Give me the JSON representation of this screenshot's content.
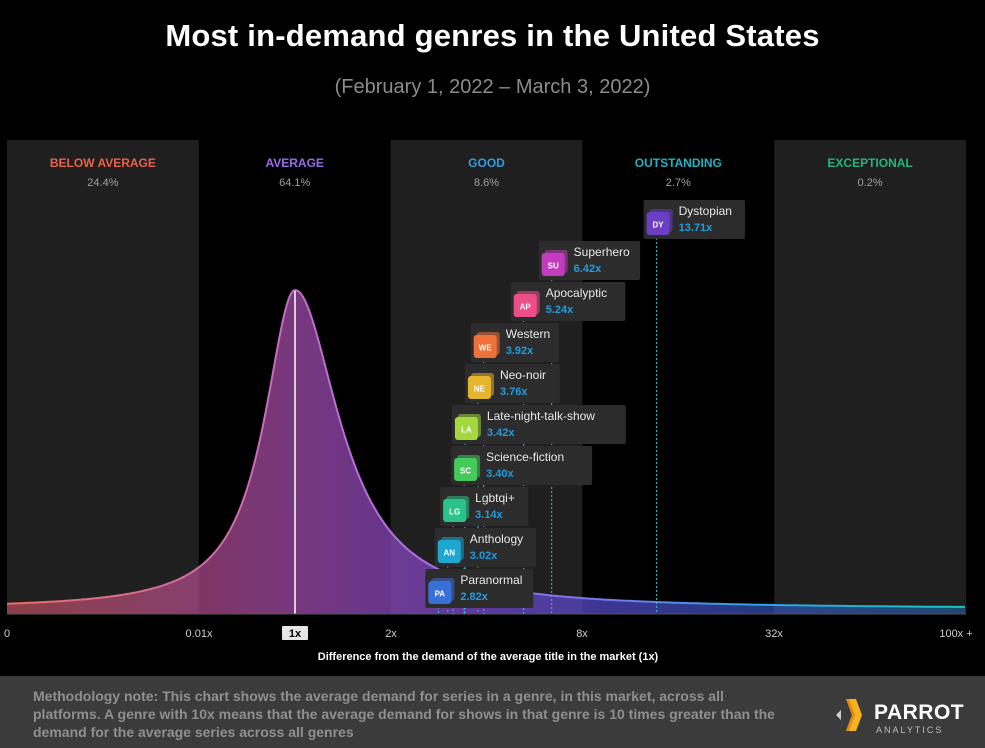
{
  "title": "Most in-demand genres in the United States",
  "subtitle": "(February 1, 2022 – March 3, 2022)",
  "footer": {
    "methodology": "Methodology note: This chart shows the average demand for series in a genre, in this market, across all platforms.  A genre with 10x means that the average demand for shows in that genre is 10 times greater than the demand for the average series across all genres",
    "brand": "PARROT",
    "brand_sub": "ANALYTICS"
  },
  "colors": {
    "background": "#000000",
    "band": "#1f1f1f",
    "value": "#1f9de0",
    "label_bg": "#2c2c2c"
  },
  "chart_data": {
    "type": "area",
    "title": "Most in-demand genres in the United States",
    "xlabel": "Difference from the demand of the average title in the market (1x)",
    "x_ticks": [
      "0",
      "0.01x",
      "1x",
      "2x",
      "8x",
      "32x",
      "100x +"
    ],
    "highlight_tick": "1x",
    "bands": [
      {
        "name": "BELOW AVERAGE",
        "share": "24.4%",
        "color": "#e8614c",
        "shaded": true
      },
      {
        "name": "AVERAGE",
        "share": "64.1%",
        "color": "#9b6be8",
        "shaded": false
      },
      {
        "name": "GOOD",
        "share": "8.6%",
        "color": "#2f9fe0",
        "shaded": true
      },
      {
        "name": "OUTSTANDING",
        "share": "2.7%",
        "color": "#21b3c4",
        "shaded": false
      },
      {
        "name": "EXCEPTIONAL",
        "share": "0.2%",
        "color": "#22b57c",
        "shaded": true
      }
    ],
    "genres": [
      {
        "abbr": "DY",
        "name": "Dystopian",
        "value": 13.71,
        "label": "13.71x",
        "color": "#6b3fc4"
      },
      {
        "abbr": "SU",
        "name": "Superhero",
        "value": 6.42,
        "label": "6.42x",
        "color": "#c23cbd"
      },
      {
        "abbr": "AP",
        "name": "Apocalyptic",
        "value": 5.24,
        "label": "5.24x",
        "color": "#ec4f87"
      },
      {
        "abbr": "WE",
        "name": "Western",
        "value": 3.92,
        "label": "3.92x",
        "color": "#f0703a"
      },
      {
        "abbr": "NE",
        "name": "Neo-noir",
        "value": 3.76,
        "label": "3.76x",
        "color": "#e6b530"
      },
      {
        "abbr": "LA",
        "name": "Late-night-talk-show",
        "value": 3.42,
        "label": "3.42x",
        "color": "#a3d93f"
      },
      {
        "abbr": "SC",
        "name": "Science-fiction",
        "value": 3.4,
        "label": "3.40x",
        "color": "#44c95a"
      },
      {
        "abbr": "LG",
        "name": "Lgbtqi+",
        "value": 3.14,
        "label": "3.14x",
        "color": "#2bc38a"
      },
      {
        "abbr": "AN",
        "name": "Anthology",
        "value": 3.02,
        "label": "3.02x",
        "color": "#20a7d1"
      },
      {
        "abbr": "PA",
        "name": "Paranormal",
        "value": 2.82,
        "label": "2.82x",
        "color": "#3a6fd8"
      }
    ]
  }
}
